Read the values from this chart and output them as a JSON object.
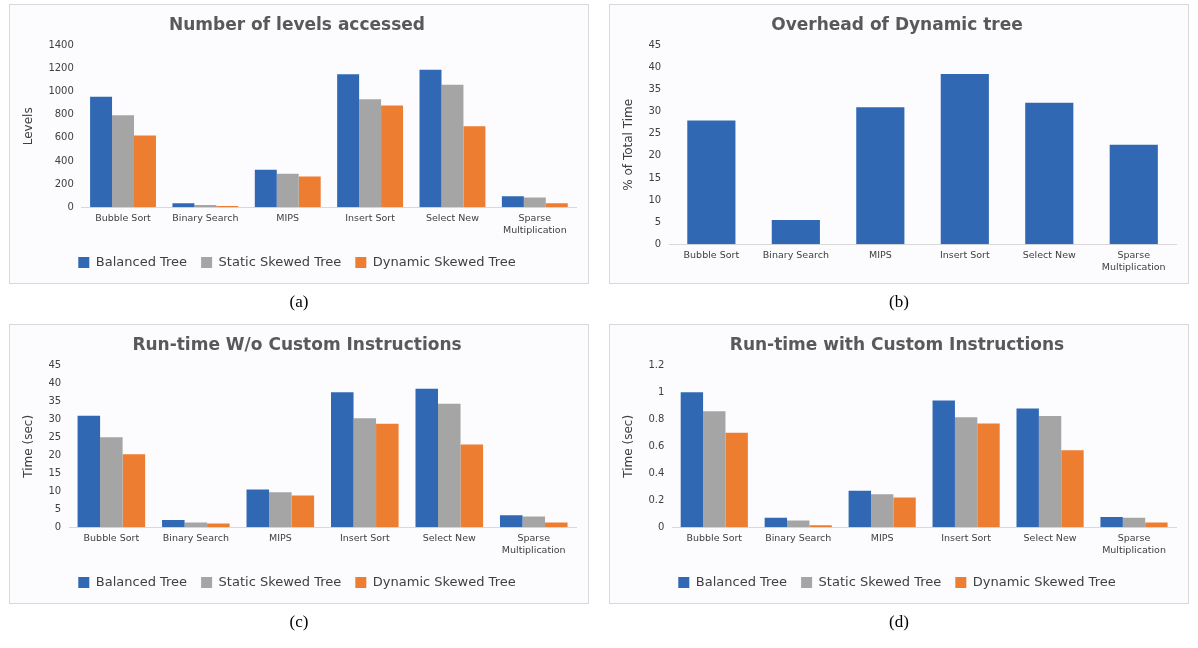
{
  "chart_data": [
    {
      "type": "bar",
      "title": "Number of levels accessed",
      "ylabel": "Levels",
      "categories": [
        "Bubble Sort",
        "Binary Search",
        "MIPS",
        "Insert Sort",
        "Select New",
        "Sparse Multiplication"
      ],
      "series": [
        {
          "name": "Balanced Tree",
          "color": "#3068b3",
          "values": [
            955,
            35,
            325,
            1150,
            1190,
            95
          ]
        },
        {
          "name": "Static Skewed Tree",
          "color": "#a5a5a5",
          "values": [
            795,
            20,
            290,
            935,
            1060,
            85
          ]
        },
        {
          "name": "Dynamic Skewed Tree",
          "color": "#ed7d31",
          "values": [
            620,
            10,
            265,
            880,
            700,
            35
          ]
        }
      ],
      "ylim": [
        0,
        1400
      ],
      "yticks": [
        0,
        200,
        400,
        600,
        800,
        1000,
        1200,
        1400
      ],
      "grid": false,
      "legend": "bottom",
      "annotations": [
        "(a)"
      ]
    },
    {
      "type": "bar",
      "title": "Overhead of Dynamic tree",
      "ylabel": "% of Total Time",
      "categories": [
        "Bubble Sort",
        "Binary Search",
        "MIPS",
        "Insert Sort",
        "Select New",
        "Sparse Multiplication"
      ],
      "values": [
        28,
        5.5,
        31,
        38.5,
        32,
        22.5
      ],
      "color": "#3068b3",
      "ylim": [
        0,
        45
      ],
      "yticks": [
        0,
        5,
        10,
        15,
        20,
        25,
        30,
        35,
        40,
        45
      ],
      "grid": false,
      "annotations": [
        "(b)"
      ]
    },
    {
      "type": "bar",
      "title": "Run-time W/o Custom Instructions",
      "ylabel": "Time (sec)",
      "categories": [
        "Bubble Sort",
        "Binary Search",
        "MIPS",
        "Insert Sort",
        "Select New",
        "Sparse Multiplication"
      ],
      "series": [
        {
          "name": "Balanced Tree",
          "color": "#3068b3",
          "values": [
            31,
            2,
            10.5,
            37.5,
            38.5,
            3.3
          ]
        },
        {
          "name": "Static Skewed Tree",
          "color": "#a5a5a5",
          "values": [
            25,
            1.3,
            9.7,
            30.3,
            34.3,
            3
          ]
        },
        {
          "name": "Dynamic Skewed Tree",
          "color": "#ed7d31",
          "values": [
            20.3,
            1,
            8.8,
            28.8,
            23,
            1.3
          ]
        }
      ],
      "ylim": [
        0,
        45
      ],
      "yticks": [
        0,
        5,
        10,
        15,
        20,
        25,
        30,
        35,
        40,
        45
      ],
      "grid": false,
      "legend": "bottom",
      "annotations": [
        "(c)"
      ]
    },
    {
      "type": "bar",
      "title": "Run-time with Custom Instructions",
      "ylabel": "Time (sec)",
      "categories": [
        "Bubble Sort",
        "Binary Search",
        "MIPS",
        "Insert Sort",
        "Select New",
        "Sparse Multiplication"
      ],
      "series": [
        {
          "name": "Balanced Tree",
          "color": "#3068b3",
          "values": [
            1.0,
            0.07,
            0.27,
            0.94,
            0.88,
            0.075
          ]
        },
        {
          "name": "Static Skewed Tree",
          "color": "#a5a5a5",
          "values": [
            0.86,
            0.05,
            0.245,
            0.815,
            0.825,
            0.07
          ]
        },
        {
          "name": "Dynamic Skewed Tree",
          "color": "#ed7d31",
          "values": [
            0.7,
            0.015,
            0.22,
            0.77,
            0.57,
            0.035
          ]
        }
      ],
      "ylim": [
        0,
        1.2
      ],
      "yticks": [
        0,
        0.2,
        0.4,
        0.6,
        0.8,
        1,
        1.2
      ],
      "grid": false,
      "legend": "bottom",
      "annotations": [
        "(d)"
      ]
    }
  ]
}
